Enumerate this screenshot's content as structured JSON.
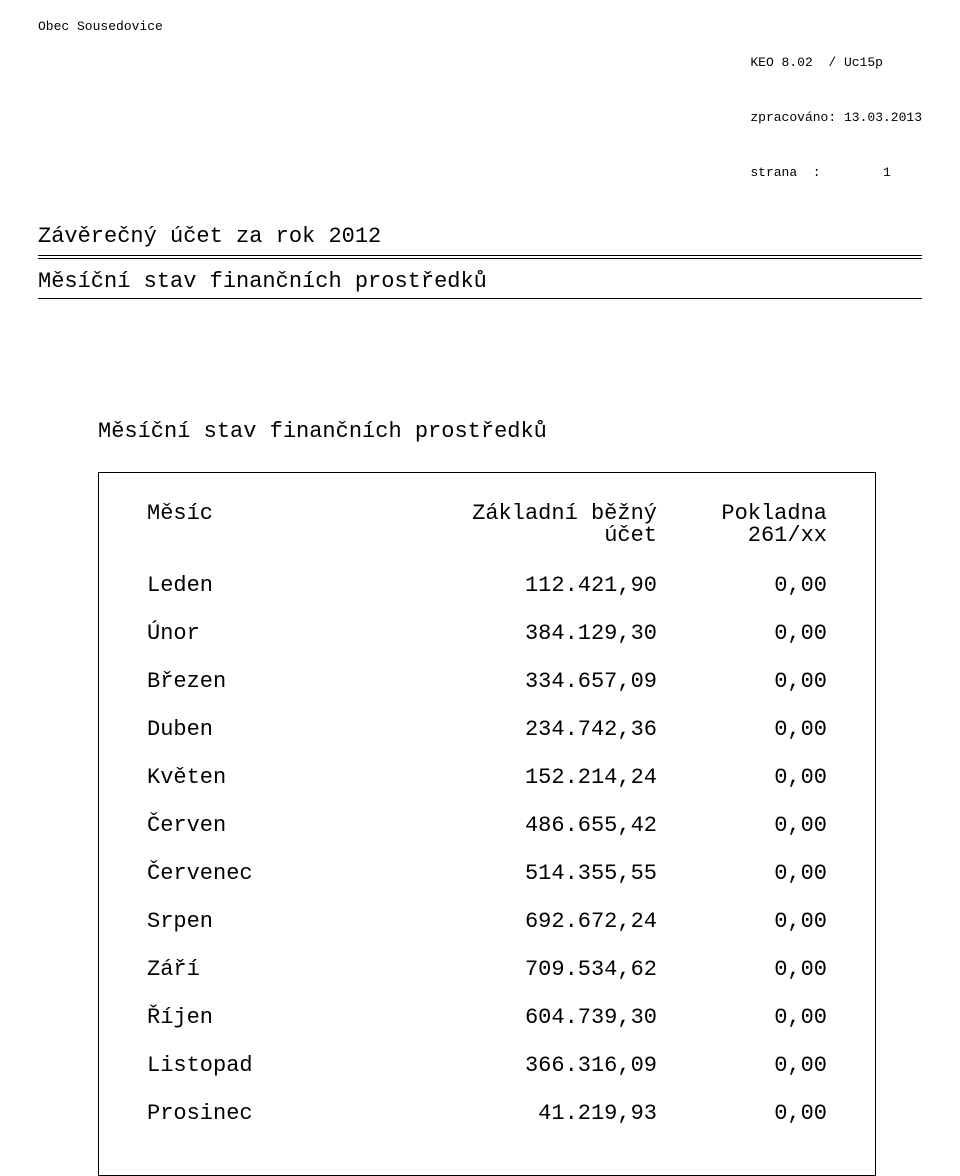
{
  "header": {
    "org": "Obec Sousedovice",
    "meta_app": "KEO 8.02  / Uc15p",
    "meta_date_label": "zpracováno:",
    "meta_date": "13.03.2013",
    "meta_page_label": "strana  :",
    "meta_page": "1",
    "title": "Závěrečný účet za rok 2012"
  },
  "section": {
    "heading": "Měsíční stav finančních prostředků",
    "sub": "Měsíční stav finančních prostředků"
  },
  "table": {
    "hdr_month": "Měsíc",
    "hdr_acc1": "Základní běžný",
    "hdr_acc2": "účet",
    "hdr_pok1": "Pokladna",
    "hdr_pok2": "261/xx",
    "rows": [
      {
        "m": "Leden",
        "v": "112.421,90",
        "p": "0,00"
      },
      {
        "m": "Únor",
        "v": "384.129,30",
        "p": "0,00"
      },
      {
        "m": "Březen",
        "v": "334.657,09",
        "p": "0,00"
      },
      {
        "m": "Duben",
        "v": "234.742,36",
        "p": "0,00"
      },
      {
        "m": "Květen",
        "v": "152.214,24",
        "p": "0,00"
      },
      {
        "m": "Červen",
        "v": "486.655,42",
        "p": "0,00"
      },
      {
        "m": "Červenec",
        "v": "514.355,55",
        "p": "0,00"
      },
      {
        "m": "Srpen",
        "v": "692.672,24",
        "p": "0,00"
      },
      {
        "m": "Září",
        "v": "709.534,62",
        "p": "0,00"
      },
      {
        "m": "Říjen",
        "v": "604.739,30",
        "p": "0,00"
      },
      {
        "m": "Listopad",
        "v": "366.316,09",
        "p": "0,00"
      },
      {
        "m": "Prosinec",
        "v": "41.219,93",
        "p": "0,00"
      }
    ]
  }
}
